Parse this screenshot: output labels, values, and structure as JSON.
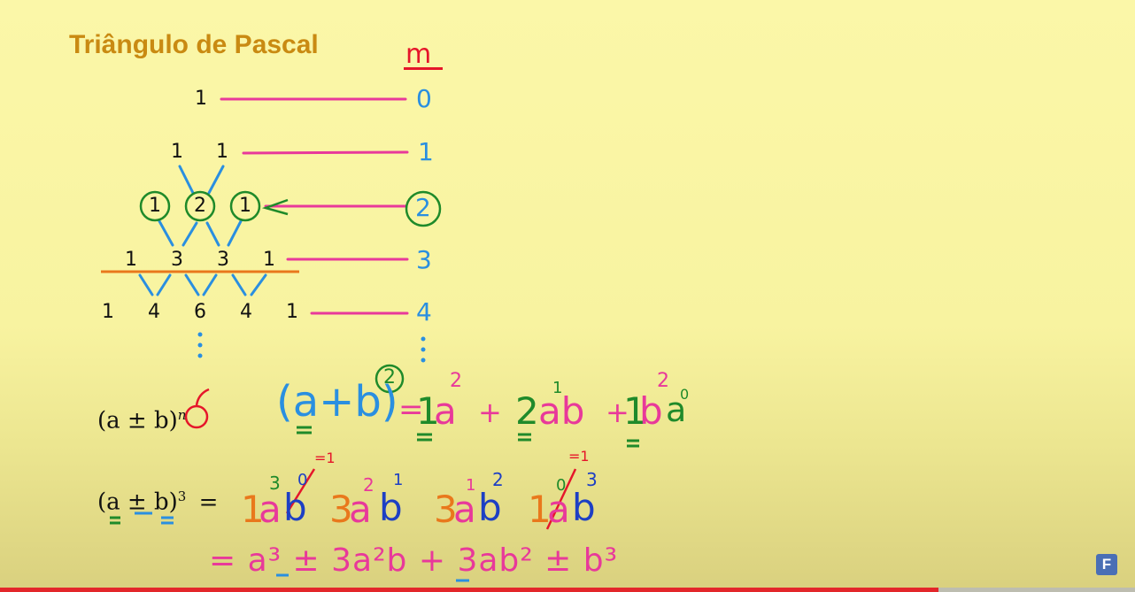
{
  "title": "Triângulo de Pascal",
  "m_label": "m",
  "rows": [
    [
      "1"
    ],
    [
      "1",
      "1"
    ],
    [
      "1",
      "2",
      "1"
    ],
    [
      "1",
      "3",
      "3",
      "1"
    ],
    [
      "1",
      "4",
      "6",
      "4",
      "1"
    ]
  ],
  "levels": [
    "0",
    "1",
    "2",
    "3",
    "4"
  ],
  "formula_general": "(a ± b)",
  "formula_general_exp": "n",
  "formula_cube": "(a ± b)",
  "formula_cube_exp": "3",
  "formula_cube_eq": "=",
  "square_expansion": {
    "lhs": "(a+b)",
    "exp": "2",
    "eq": "=",
    "terms": [
      {
        "coef": "1",
        "var": "a",
        "exp": "2",
        "sign": "+"
      },
      {
        "coef": "2",
        "var": "ab",
        "exp": "1",
        "sign": "+"
      },
      {
        "coef": "1",
        "var": "b",
        "exp": "2",
        "var2": "a",
        "exp2": "0"
      }
    ]
  },
  "cube_terms": [
    {
      "coef": "1",
      "a_exp": "3",
      "b_exp": "0",
      "note": "=1"
    },
    {
      "coef": "3",
      "a_exp": "2",
      "b_exp": "1"
    },
    {
      "coef": "3",
      "a_exp": "1",
      "b_exp": "2"
    },
    {
      "coef": "1",
      "a_exp": "0",
      "b_exp": "3",
      "note": "=1"
    }
  ],
  "cube_result": "= a³ ± 3a²b + 3ab² ± b³",
  "colors": {
    "title": "#c98a12",
    "pink": "#e8399a",
    "blue": "#2a8fe0",
    "green": "#1f8a2a",
    "orange": "#e9781c",
    "red": "#e5162a",
    "dark_blue": "#1d3fc4"
  },
  "logo_letter": "F"
}
